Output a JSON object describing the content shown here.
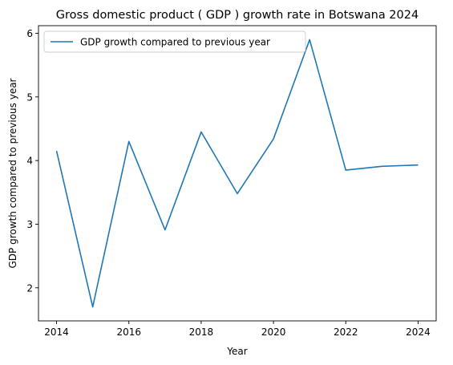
{
  "chart_data": {
    "type": "line",
    "title": "Gross domestic product ( GDP ) growth rate in Botswana 2024",
    "xlabel": "Year",
    "ylabel": "GDP growth compared to previous year",
    "x": [
      2014,
      2015,
      2016,
      2017,
      2018,
      2019,
      2020,
      2021,
      2022,
      2023,
      2024
    ],
    "series": [
      {
        "name": "GDP growth compared to previous year",
        "values": [
          4.15,
          1.7,
          4.3,
          2.91,
          4.45,
          3.48,
          4.34,
          5.9,
          3.85,
          3.91,
          3.93
        ],
        "color": "#1f77b4"
      }
    ],
    "xticks": [
      2014,
      2016,
      2018,
      2020,
      2022,
      2024
    ],
    "yticks": [
      2,
      3,
      4,
      5,
      6
    ],
    "xlim": [
      2013.5,
      2024.5
    ],
    "ylim": [
      1.48,
      6.12
    ],
    "grid": false,
    "legend": "upper-left"
  }
}
